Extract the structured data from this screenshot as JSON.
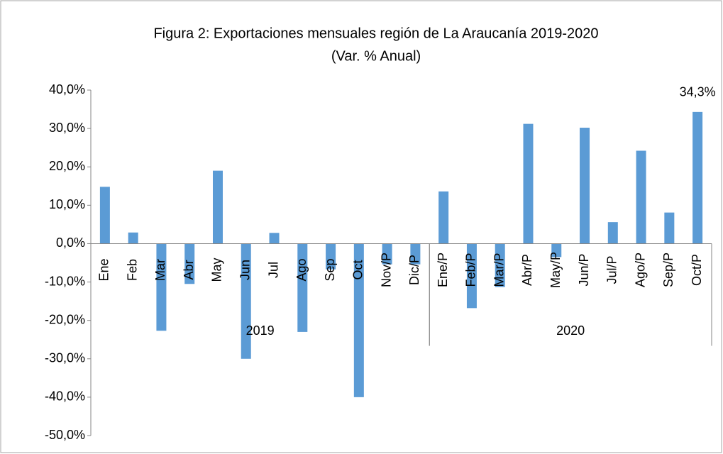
{
  "chart_data": {
    "type": "bar",
    "title": "Figura 2: Exportaciones mensuales región de La Araucanía 2019-2020",
    "subtitle": "(Var. % Anual)",
    "categories": [
      "Ene",
      "Feb",
      "Mar",
      "Abr",
      "May",
      "Jun",
      "Jul",
      "Ago",
      "Sep",
      "Oct",
      "Nov/P",
      "Dic/P",
      "Ene/P",
      "Feb/P",
      "Mar/P",
      "Abr/P",
      "May/P",
      "Jun/P",
      "Jul/P",
      "Ago/P",
      "Sep/P",
      "Oct/P"
    ],
    "groups": [
      {
        "name": "2019",
        "span": 12
      },
      {
        "name": "2020",
        "span": 10
      }
    ],
    "values": [
      14.8,
      2.9,
      -22.7,
      -10.5,
      19.0,
      -30.0,
      2.8,
      -23.0,
      -6.7,
      -40.0,
      -5.4,
      -5.4,
      13.6,
      -16.8,
      -11.3,
      31.2,
      -3.5,
      30.2,
      5.6,
      24.2,
      8.1,
      34.3
    ],
    "value_labels": [
      null,
      null,
      null,
      null,
      null,
      null,
      null,
      null,
      null,
      null,
      null,
      null,
      null,
      null,
      null,
      null,
      null,
      null,
      null,
      null,
      null,
      "34,3%"
    ],
    "color": "#5b9bd5",
    "ylim": [
      -50,
      40
    ],
    "yticks": [
      {
        "value": -50,
        "label": "-50,0%"
      },
      {
        "value": -40,
        "label": "-40,0%"
      },
      {
        "value": -30,
        "label": "-30,0%"
      },
      {
        "value": -20,
        "label": "-20,0%"
      },
      {
        "value": -10,
        "label": "-10,0%"
      },
      {
        "value": 0,
        "label": "0,0%"
      },
      {
        "value": 10,
        "label": "10,0%"
      },
      {
        "value": 20,
        "label": "20,0%"
      },
      {
        "value": 30,
        "label": "30,0%"
      },
      {
        "value": 40,
        "label": "40,0%"
      }
    ],
    "grid": false
  }
}
